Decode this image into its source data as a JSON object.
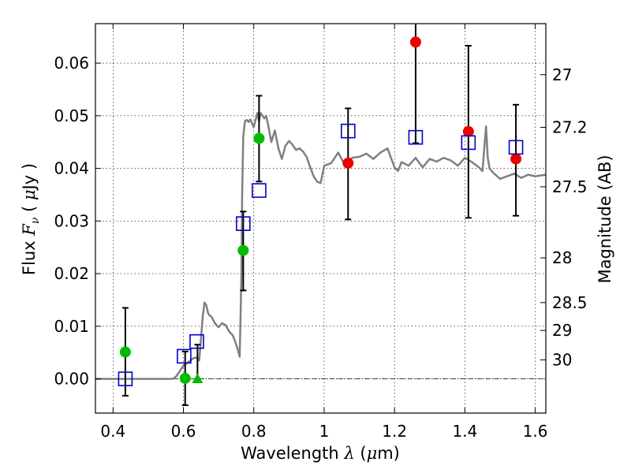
{
  "chart_data": {
    "type": "scatter",
    "xlabel": "Wavelength  λ (μm)",
    "ylabel": "Flux  F_ν  ( μJy )",
    "ylabel_parts": {
      "pre": "Flux  ",
      "F": "F",
      "nu": "ν",
      "mid": "  ( ",
      "mu": "μ",
      "post": "Jy )"
    },
    "xlabel_parts": {
      "pre": "Wavelength  ",
      "lambda": "λ",
      "mid": " (",
      "mu": "μ",
      "post": "m)"
    },
    "y2label": "Magnitude (AB)",
    "xlim": [
      0.35,
      1.63
    ],
    "ylim": [
      -0.0065,
      0.0675
    ],
    "grid": true,
    "x_ticks": [
      {
        "value": 0.4,
        "label": "0.4"
      },
      {
        "value": 0.6,
        "label": "0.6"
      },
      {
        "value": 0.8,
        "label": "0.8"
      },
      {
        "value": 1.0,
        "label": "1"
      },
      {
        "value": 1.2,
        "label": "1.2"
      },
      {
        "value": 1.4,
        "label": "1.4"
      },
      {
        "value": 1.6,
        "label": "1.6"
      }
    ],
    "y_ticks": [
      {
        "value": 0.0,
        "label": "0.00"
      },
      {
        "value": 0.01,
        "label": "0.01"
      },
      {
        "value": 0.02,
        "label": "0.02"
      },
      {
        "value": 0.03,
        "label": "0.03"
      },
      {
        "value": 0.04,
        "label": "0.04"
      },
      {
        "value": 0.05,
        "label": "0.05"
      },
      {
        "value": 0.06,
        "label": "0.06"
      }
    ],
    "y2_ticks": [
      {
        "flux": 0.0578,
        "label": "27"
      },
      {
        "flux": 0.0478,
        "label": "27.2"
      },
      {
        "flux": 0.0365,
        "label": "27.5"
      },
      {
        "flux": 0.023,
        "label": "28"
      },
      {
        "flux": 0.0145,
        "label": "28.5"
      },
      {
        "flux": 0.0092,
        "label": "29"
      },
      {
        "flux": 0.0036,
        "label": "30"
      }
    ],
    "colors": {
      "spectrum": "#808080",
      "green": "#00bb00",
      "red": "#ee0000",
      "model_box": "#0000cc",
      "errorbar": "#000000",
      "zero_line": "#000000"
    },
    "spectrum": {
      "x": [
        0.35,
        0.57,
        0.58,
        0.59,
        0.6,
        0.61,
        0.62,
        0.63,
        0.64,
        0.645,
        0.655,
        0.66,
        0.665,
        0.67,
        0.675,
        0.68,
        0.69,
        0.7,
        0.71,
        0.72,
        0.73,
        0.74,
        0.745,
        0.75,
        0.755,
        0.76,
        0.765,
        0.767,
        0.77,
        0.775,
        0.78,
        0.785,
        0.79,
        0.8,
        0.81,
        0.815,
        0.82,
        0.83,
        0.835,
        0.84,
        0.85,
        0.86,
        0.87,
        0.88,
        0.89,
        0.9,
        0.91,
        0.92,
        0.93,
        0.94,
        0.95,
        0.96,
        0.97,
        0.98,
        0.99,
        1.0,
        1.02,
        1.04,
        1.06,
        1.08,
        1.1,
        1.12,
        1.14,
        1.16,
        1.18,
        1.19,
        1.2,
        1.21,
        1.22,
        1.24,
        1.26,
        1.28,
        1.3,
        1.32,
        1.34,
        1.36,
        1.38,
        1.4,
        1.42,
        1.44,
        1.45,
        1.46,
        1.465,
        1.47,
        1.48,
        1.5,
        1.52,
        1.54,
        1.56,
        1.58,
        1.6,
        1.63
      ],
      "y": [
        0.0,
        0.0,
        0.0005,
        0.0015,
        0.0025,
        0.003,
        0.0035,
        0.004,
        0.004,
        0.0035,
        0.012,
        0.0145,
        0.014,
        0.0125,
        0.012,
        0.0118,
        0.0105,
        0.0098,
        0.0106,
        0.0102,
        0.009,
        0.0083,
        0.0075,
        0.0065,
        0.0055,
        0.0042,
        0.02,
        0.035,
        0.046,
        0.049,
        0.0492,
        0.0488,
        0.0493,
        0.0478,
        0.0505,
        0.049,
        0.0505,
        0.0495,
        0.05,
        0.0485,
        0.045,
        0.0472,
        0.0438,
        0.0418,
        0.0443,
        0.0452,
        0.0445,
        0.0435,
        0.0438,
        0.0432,
        0.0422,
        0.0403,
        0.0385,
        0.0375,
        0.0372,
        0.0405,
        0.041,
        0.043,
        0.0405,
        0.042,
        0.0422,
        0.0428,
        0.0418,
        0.043,
        0.0438,
        0.042,
        0.0402,
        0.0395,
        0.0412,
        0.0405,
        0.042,
        0.0402,
        0.0418,
        0.0413,
        0.042,
        0.0415,
        0.0405,
        0.042,
        0.0412,
        0.0402,
        0.0395,
        0.048,
        0.042,
        0.04,
        0.0392,
        0.038,
        0.0385,
        0.039,
        0.0382,
        0.0388,
        0.0385,
        0.0388
      ]
    },
    "series": [
      {
        "name": "green",
        "marker": "circle",
        "points": [
          {
            "x": 0.435,
            "y": 0.0051,
            "yerr_low": -0.0032,
            "yerr_high": 0.0135
          },
          {
            "x": 0.605,
            "y": 0.0001,
            "yerr_low": -0.005,
            "yerr_high": 0.0052
          },
          {
            "x": 0.77,
            "y": 0.0244,
            "yerr_low": 0.0168,
            "yerr_high": 0.0318
          },
          {
            "x": 0.815,
            "y": 0.0457,
            "yerr_low": 0.0375,
            "yerr_high": 0.0538
          }
        ]
      },
      {
        "name": "green-limit",
        "marker": "triangle",
        "points": [
          {
            "x": 0.64,
            "y": 0.0,
            "yerr_low": -0.0005,
            "yerr_high": 0.0065
          }
        ]
      },
      {
        "name": "red",
        "marker": "circle",
        "points": [
          {
            "x": 1.068,
            "y": 0.041,
            "yerr_low": 0.0303,
            "yerr_high": 0.0514
          },
          {
            "x": 1.26,
            "y": 0.064,
            "yerr_low": 0.0448,
            "yerr_high": 0.068
          },
          {
            "x": 1.41,
            "y": 0.047,
            "yerr_low": 0.0306,
            "yerr_high": 0.0633
          },
          {
            "x": 1.545,
            "y": 0.0418,
            "yerr_low": 0.031,
            "yerr_high": 0.0521
          }
        ]
      },
      {
        "name": "model",
        "marker": "square",
        "points": [
          {
            "x": 0.435,
            "y": 0.0
          },
          {
            "x": 0.602,
            "y": 0.0043
          },
          {
            "x": 0.638,
            "y": 0.0071
          },
          {
            "x": 0.77,
            "y": 0.0295
          },
          {
            "x": 0.815,
            "y": 0.0358
          },
          {
            "x": 1.068,
            "y": 0.0471
          },
          {
            "x": 1.26,
            "y": 0.0459
          },
          {
            "x": 1.41,
            "y": 0.0449
          },
          {
            "x": 1.545,
            "y": 0.044
          }
        ]
      }
    ]
  }
}
